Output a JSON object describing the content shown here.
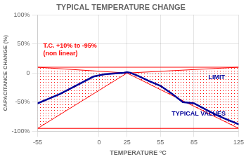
{
  "chart_data": {
    "type": "line",
    "title": "TYPICAL TEMPERATURE CHANGE",
    "x_label": "TEMPERATURE °C",
    "y_label": "CAPACITANCE CHANGE (%)",
    "xlim": [
      -55,
      125
    ],
    "ylim": [
      -100,
      100
    ],
    "xticks": [
      -55,
      0,
      25,
      55,
      85,
      125
    ],
    "yticks": [
      {
        "value": -100,
        "label": "-100%"
      },
      {
        "value": -50,
        "label": "-50%"
      },
      0,
      {
        "value": 50,
        "label": "50%"
      },
      {
        "value": 100,
        "label": "100%"
      }
    ],
    "grid": true,
    "x": [
      -55,
      -45,
      -35,
      -25,
      -15,
      -5,
      5,
      15,
      22,
      25,
      28,
      35,
      45,
      55,
      65,
      75,
      85,
      95,
      105,
      115,
      125
    ],
    "series": [
      {
        "color": "#000099",
        "values": [
          -52,
          -44,
          -36,
          -26,
          -16,
          -6,
          -2,
          -0.5,
          0.5,
          1.5,
          0.5,
          -5,
          -14,
          -22,
          -35,
          -50,
          -52,
          -62,
          -72,
          -80,
          -88
        ]
      }
    ],
    "limit_fan": {
      "color": "#ff0000",
      "x": [
        -55,
        25,
        125
      ],
      "upper": [
        10,
        0,
        10
      ],
      "lower": [
        -95,
        0,
        -95
      ]
    },
    "annotations": [
      {
        "text": "T.C. +10% to -95%\n(non linear)",
        "x": -50,
        "y": 40,
        "color": "#ff0000"
      },
      {
        "text": "LIMIT",
        "x": 98,
        "y": -8,
        "color": "#000099"
      },
      {
        "text": "TYPICAL VALUES",
        "x": 65,
        "y": -70,
        "color": "#000099"
      }
    ]
  }
}
